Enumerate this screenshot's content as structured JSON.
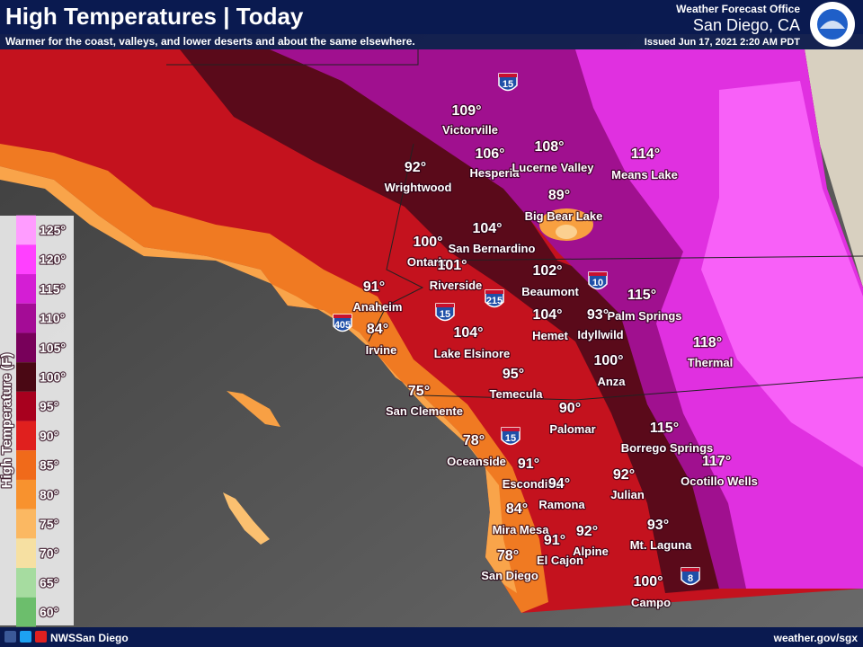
{
  "header": {
    "title": "High Temperatures | Today",
    "subtitle": "Warmer for the coast, valleys, and lower deserts and about the same elsewhere.",
    "office": "Weather Forecast Office",
    "location": "San Diego, CA",
    "issued": "Issued Jun 17, 2021 2:20 AM PDT"
  },
  "legend": {
    "title": "High Temperature (F)",
    "stops": [
      {
        "label": "125°",
        "color": "#ff9cff"
      },
      {
        "label": "120°",
        "color": "#ff40ff"
      },
      {
        "label": "115°",
        "color": "#d41ed4"
      },
      {
        "label": "110°",
        "color": "#a40c96"
      },
      {
        "label": "105°",
        "color": "#78005a"
      },
      {
        "label": "100°",
        "color": "#4a0814"
      },
      {
        "label": "95°",
        "color": "#a8001e"
      },
      {
        "label": "90°",
        "color": "#e0201e"
      },
      {
        "label": "85°",
        "color": "#f06a1a"
      },
      {
        "label": "80°",
        "color": "#f8922e"
      },
      {
        "label": "75°",
        "color": "#fbb862"
      },
      {
        "label": "70°",
        "color": "#f6e0a2"
      },
      {
        "label": "65°",
        "color": "#a6dca0"
      },
      {
        "label": "60°",
        "color": "#6cbe6c"
      }
    ]
  },
  "cities": [
    {
      "temp": "109°",
      "name": "Victorville"
    },
    {
      "temp": "106°",
      "name": "Hesperia"
    },
    {
      "temp": "108°",
      "name": "Lucerne Valley"
    },
    {
      "temp": "114°",
      "name": "Means Lake"
    },
    {
      "temp": "92°",
      "name": "Wrightwood"
    },
    {
      "temp": "89°",
      "name": "Big Bear Lake"
    },
    {
      "temp": "104°",
      "name": "San Bernardino"
    },
    {
      "temp": "100°",
      "name": "Ontario"
    },
    {
      "temp": "101°",
      "name": "Riverside"
    },
    {
      "temp": "102°",
      "name": "Beaumont"
    },
    {
      "temp": "115°",
      "name": "Palm Springs"
    },
    {
      "temp": "91°",
      "name": "Anaheim"
    },
    {
      "temp": "104°",
      "name": "Hemet"
    },
    {
      "temp": "93°",
      "name": "Idyllwild"
    },
    {
      "temp": "84°",
      "name": "Irvine"
    },
    {
      "temp": "104°",
      "name": "Lake Elsinore"
    },
    {
      "temp": "118°",
      "name": "Thermal"
    },
    {
      "temp": "95°",
      "name": "Temecula"
    },
    {
      "temp": "100°",
      "name": "Anza"
    },
    {
      "temp": "75°",
      "name": "San Clemente"
    },
    {
      "temp": "90°",
      "name": "Palomar"
    },
    {
      "temp": "115°",
      "name": "Borrego Springs"
    },
    {
      "temp": "78°",
      "name": "Oceanside"
    },
    {
      "temp": "117°",
      "name": "Ocotillo Wells"
    },
    {
      "temp": "91°",
      "name": "Escondido"
    },
    {
      "temp": "92°",
      "name": "Julian"
    },
    {
      "temp": "94°",
      "name": "Ramona"
    },
    {
      "temp": "84°",
      "name": "Mira Mesa"
    },
    {
      "temp": "93°",
      "name": "Mt. Laguna"
    },
    {
      "temp": "92°",
      "name": "Alpine"
    },
    {
      "temp": "91°",
      "name": "El Cajon"
    },
    {
      "temp": "78°",
      "name": "San Diego"
    },
    {
      "temp": "100°",
      "name": "Campo"
    }
  ],
  "shields": [
    "15",
    "10",
    "215",
    "15",
    "405",
    "15",
    "8"
  ],
  "footer": {
    "social": "NWSSan Diego",
    "url": "weather.gov/sgx"
  }
}
